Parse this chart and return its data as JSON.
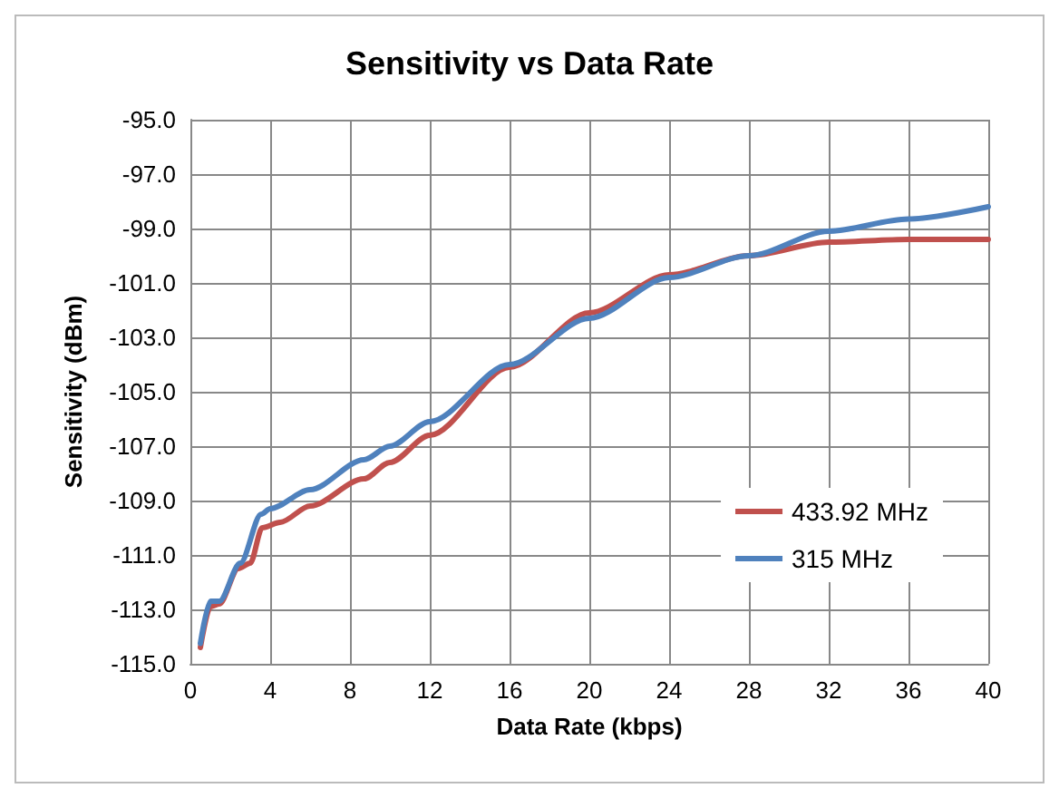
{
  "chart_data": {
    "type": "line",
    "title": "Sensitivity vs Data Rate",
    "xlabel": "Data Rate (kbps)",
    "ylabel": "Sensitivity (dBm)",
    "xlim": [
      0,
      40
    ],
    "xticks": [
      0,
      4,
      8,
      12,
      16,
      20,
      24,
      28,
      32,
      36,
      40
    ],
    "ylim": [
      -115,
      -95
    ],
    "yticks": [
      {
        "value": -115,
        "label": "-115.0"
      },
      {
        "value": -113,
        "label": "-113.0"
      },
      {
        "value": -111,
        "label": "-111.0"
      },
      {
        "value": -109,
        "label": "-109.0"
      },
      {
        "value": -107,
        "label": "-107.0"
      },
      {
        "value": -105,
        "label": "-105.0"
      },
      {
        "value": -103,
        "label": "-103.0"
      },
      {
        "value": -101,
        "label": "-101.0"
      },
      {
        "value": -99,
        "label": "-99.0"
      },
      {
        "value": -97,
        "label": "-97.0"
      },
      {
        "value": -95,
        "label": "-95.0"
      }
    ],
    "grid": true,
    "legend": "bottom right",
    "marker": "none",
    "line_style": "solid",
    "series": [
      {
        "name": "433.92 MHz",
        "color": "#c0504d",
        "x": [
          0.5,
          1.0,
          1.45,
          2.4,
          3.0,
          3.6,
          4.5,
          6,
          8.7,
          10,
          12,
          16,
          20,
          24,
          28,
          32,
          36,
          40
        ],
        "values": [
          -114.4,
          -112.9,
          -112.8,
          -111.5,
          -111.3,
          -110.0,
          -109.8,
          -109.2,
          -108.2,
          -107.6,
          -106.6,
          -104.1,
          -102.1,
          -100.7,
          -100.0,
          -99.5,
          -99.4,
          -99.4
        ]
      },
      {
        "name": "315 MHz",
        "color": "#4f81bd",
        "x": [
          0.5,
          1.0,
          1.45,
          2.5,
          3.55,
          4.0,
          6,
          8.7,
          10,
          12,
          16,
          20,
          24,
          28,
          32,
          36,
          40
        ],
        "values": [
          -114.25,
          -112.7,
          -112.7,
          -111.3,
          -109.5,
          -109.3,
          -108.6,
          -107.5,
          -107.0,
          -106.1,
          -104.0,
          -102.3,
          -100.8,
          -100.0,
          -99.1,
          -98.65,
          -98.2
        ]
      }
    ]
  }
}
